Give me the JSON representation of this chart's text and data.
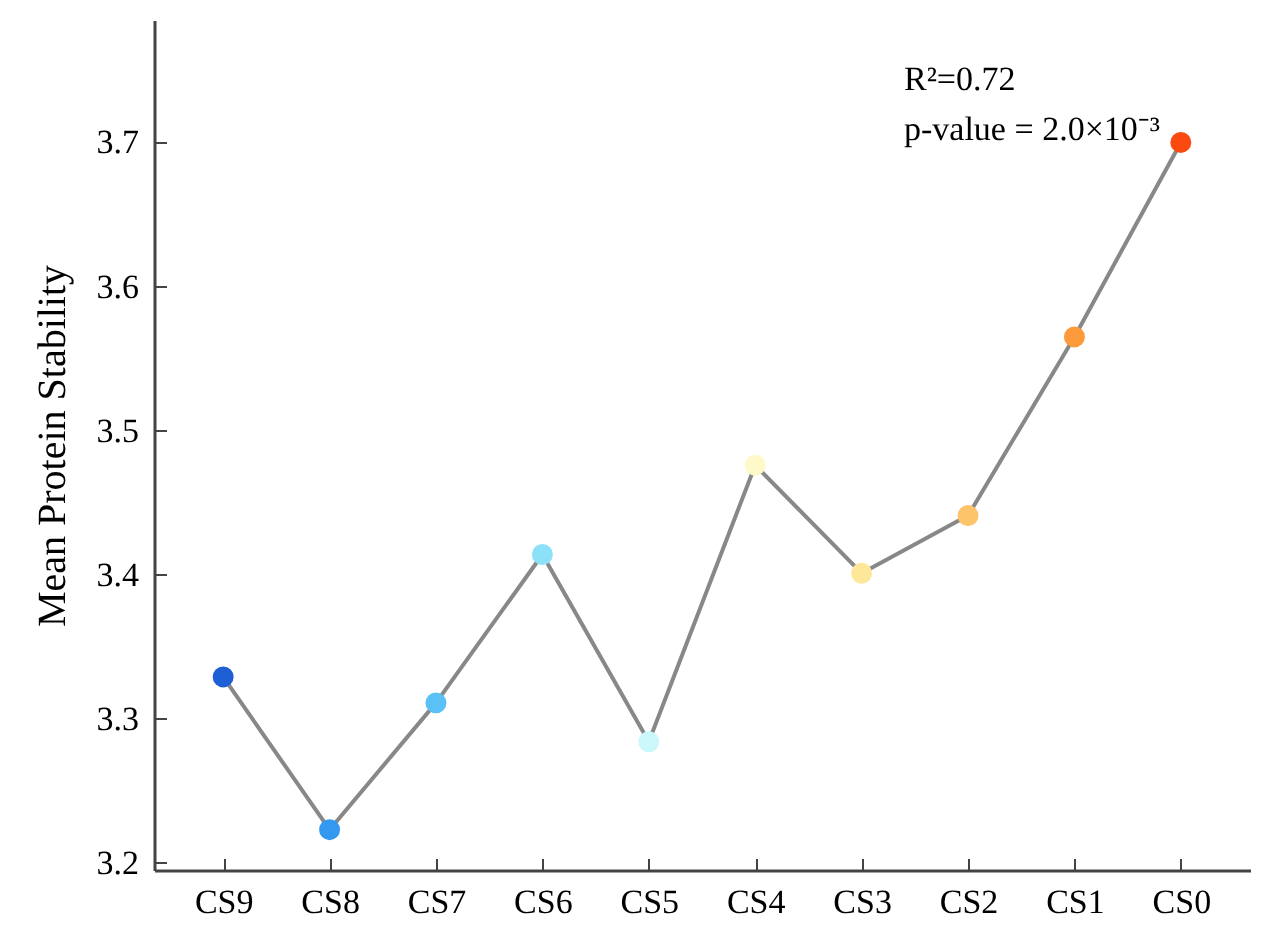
{
  "chart_data": {
    "type": "line",
    "ylabel": "Mean Protein Stability",
    "categories": [
      "CS9",
      "CS8",
      "CS7",
      "CS6",
      "CS5",
      "CS4",
      "CS3",
      "CS2",
      "CS1",
      "CS0"
    ],
    "series": [
      {
        "color": "#888888",
        "marker": "circle",
        "colors": [
          "#1f5fd6",
          "#3399f0",
          "#5ac0f5",
          "#8ce0f8",
          "#ccf7fb",
          "#fdf9c8",
          "#fde89a",
          "#fdc46a",
          "#fd9a3c",
          "#fa4a10"
        ],
        "values": [
          3.329,
          3.223,
          3.311,
          3.414,
          3.284,
          3.476,
          3.401,
          3.441,
          3.565,
          3.7
        ]
      }
    ],
    "ylim": [
      3.195,
      3.785
    ],
    "yticks": [
      3.2,
      3.3,
      3.4,
      3.5,
      3.6,
      3.7
    ],
    "grid": false,
    "annotations": [
      "R²=0.72",
      "p-value = 2.0×10⁻³"
    ]
  }
}
